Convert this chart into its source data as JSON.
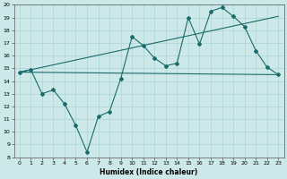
{
  "title": "",
  "xlabel": "Humidex (Indice chaleur)",
  "xlim": [
    -0.5,
    23.5
  ],
  "ylim": [
    8,
    20
  ],
  "xticks": [
    0,
    1,
    2,
    3,
    4,
    5,
    6,
    7,
    8,
    9,
    10,
    11,
    12,
    13,
    14,
    15,
    16,
    17,
    18,
    19,
    20,
    21,
    22,
    23
  ],
  "yticks": [
    8,
    9,
    10,
    11,
    12,
    13,
    14,
    15,
    16,
    17,
    18,
    19,
    20
  ],
  "bg_color": "#cce8e8",
  "grid_color": "#aad4d4",
  "line_color": "#1a6b6b",
  "series1_x": [
    0,
    1,
    2,
    3,
    4,
    5,
    6,
    7,
    8,
    9,
    10,
    11,
    12,
    13,
    14,
    15,
    16,
    17,
    18,
    19,
    20,
    21,
    22,
    23
  ],
  "series1_y": [
    14.7,
    14.9,
    13.0,
    13.3,
    12.2,
    10.5,
    8.4,
    11.2,
    11.6,
    14.2,
    17.5,
    16.8,
    15.8,
    15.2,
    15.4,
    19.0,
    16.9,
    19.5,
    19.8,
    19.1,
    18.3,
    16.4,
    15.1,
    14.5
  ],
  "series2_x": [
    0,
    23
  ],
  "series2_y": [
    14.7,
    19.1
  ],
  "series3_x": [
    0,
    23
  ],
  "series3_y": [
    14.7,
    14.5
  ]
}
